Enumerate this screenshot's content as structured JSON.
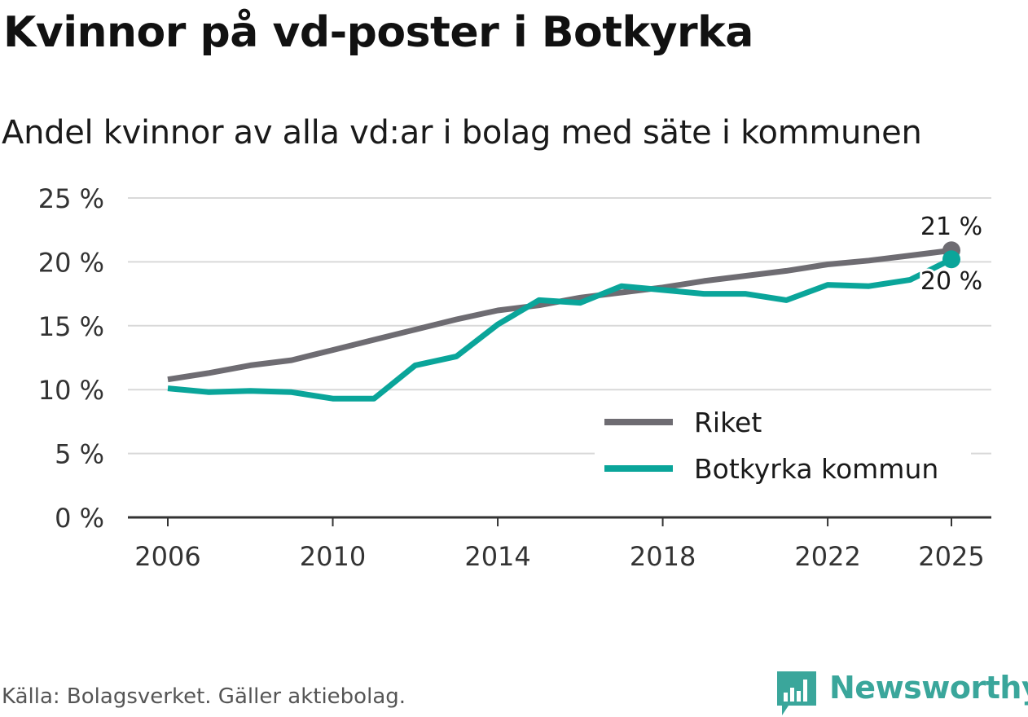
{
  "header": {
    "title": "Kvinnor på vd-poster i Botkyrka",
    "subtitle": "Andel kvinnor av alla vd:ar i bolag med säte i kommunen"
  },
  "footer": {
    "source": "Källa: Bolagsverket. Gäller aktiebolag.",
    "brand": "Newsworthy",
    "brand_icon": "bar-chart-logo-icon"
  },
  "colors": {
    "riket": "#6e6c72",
    "botkyrka": "#0aa59a",
    "grid": "#d9d9d9",
    "axis": "#333333",
    "brand": "#3aa69b"
  },
  "chart_data": {
    "type": "line",
    "title": "Kvinnor på vd-poster i Botkyrka",
    "subtitle": "Andel kvinnor av alla vd:ar i bolag med säte i kommunen",
    "xlabel": "",
    "ylabel": "",
    "x": [
      2006,
      2007,
      2008,
      2009,
      2010,
      2011,
      2012,
      2013,
      2014,
      2015,
      2016,
      2017,
      2018,
      2019,
      2020,
      2021,
      2022,
      2023,
      2024,
      2025
    ],
    "xlim": [
      2005,
      2026
    ],
    "xticks": [
      2006,
      2010,
      2014,
      2018,
      2022,
      2025
    ],
    "ylim": [
      0,
      25
    ],
    "yticks": [
      0,
      5,
      10,
      15,
      20,
      25
    ],
    "ytick_labels": [
      "0 %",
      "5 %",
      "10 %",
      "15 %",
      "20 %",
      "25 %"
    ],
    "grid": true,
    "legend_position": "bottom-right",
    "series": [
      {
        "name": "Riket",
        "color": "#6e6c72",
        "values": [
          10.8,
          11.3,
          11.9,
          12.3,
          13.1,
          13.9,
          14.7,
          15.5,
          16.2,
          16.6,
          17.2,
          17.6,
          18.0,
          18.5,
          18.9,
          19.3,
          19.8,
          20.1,
          20.5,
          20.9
        ],
        "end_label": "21 %"
      },
      {
        "name": "Botkyrka kommun",
        "color": "#0aa59a",
        "values": [
          10.1,
          9.8,
          9.9,
          9.8,
          9.3,
          9.3,
          11.9,
          12.6,
          15.1,
          17.0,
          16.8,
          18.1,
          17.8,
          17.5,
          17.5,
          17.0,
          18.2,
          18.1,
          18.6,
          20.2
        ],
        "end_label": "20 %"
      }
    ]
  }
}
